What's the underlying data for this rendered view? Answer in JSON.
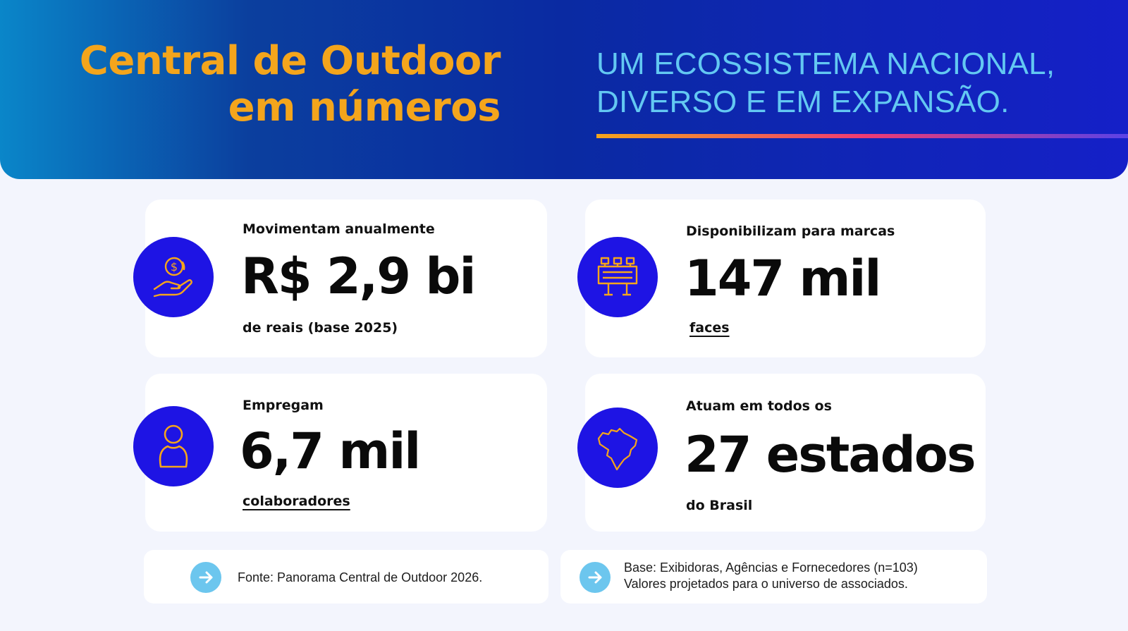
{
  "header": {
    "title_line1": "Central de Outdoor",
    "title_line2": "em números",
    "subtitle_line1": "UM ECOSSISTEMA NACIONAL,",
    "subtitle_line2": "DIVERSO E EM EXPANSÃO."
  },
  "colors": {
    "title": "#f4a51c",
    "subtitle": "#63c8f2",
    "icon_bg": "#1e14e4",
    "icon_line": "#f4a51c",
    "arrow_bg": "#6cc6ee"
  },
  "stats": [
    {
      "label": "Movimentam anualmente",
      "value": "R$ 2,9 bi",
      "caption": "de reais (base 2025)",
      "icon": "money-hand-icon"
    },
    {
      "label": "Disponibilizam para marcas",
      "value": "147 mil",
      "caption": "faces",
      "icon": "billboard-icon"
    },
    {
      "label": "Empregam",
      "value": "6,7 mil",
      "caption": "colaboradores",
      "icon": "person-icon"
    },
    {
      "label": "Atuam em todos os",
      "value": "27 estados",
      "caption": "do Brasil",
      "icon": "brazil-map-icon"
    }
  ],
  "notes": {
    "source": "Fonte: Panorama Central de Outdoor 2026.",
    "base_line1": "Base: Exibidoras, Agências e Fornecedores (n=103)",
    "base_line2": "Valores projetados para o universo de associados."
  }
}
